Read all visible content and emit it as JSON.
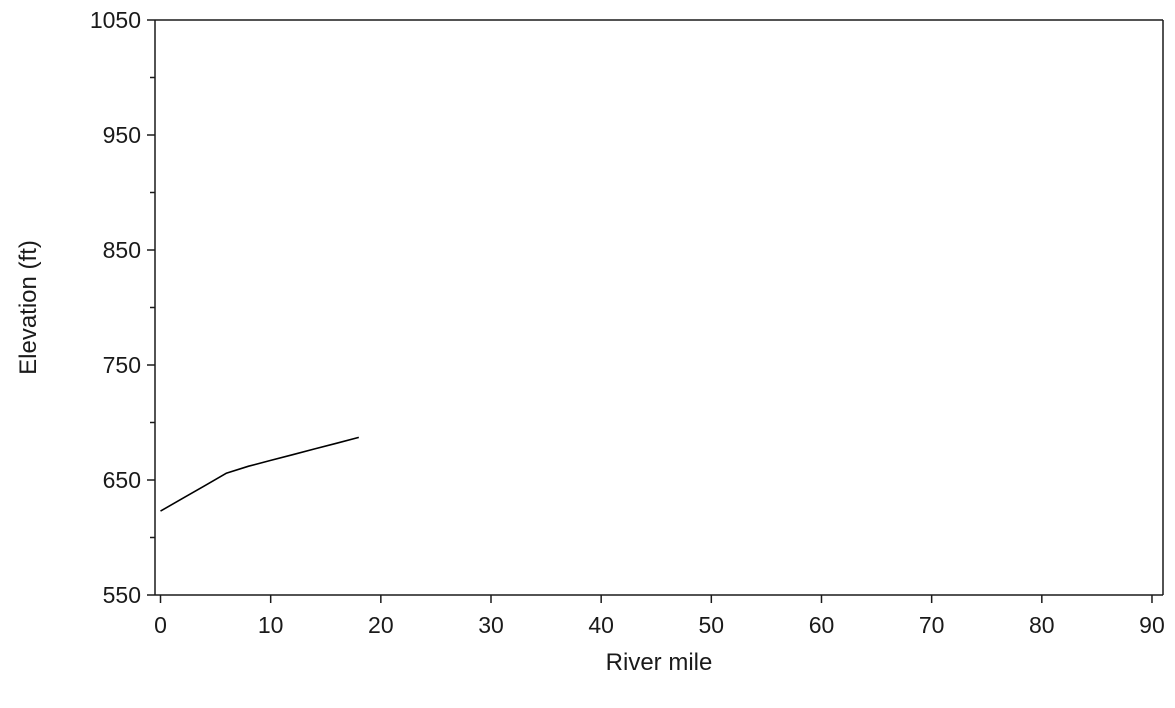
{
  "chart_data": {
    "type": "line",
    "title": "",
    "xlabel": "River mile",
    "ylabel": "Elevation (ft)",
    "xlim": [
      -0.5,
      91
    ],
    "ylim": [
      550,
      1050
    ],
    "x_ticks": [
      0,
      10,
      20,
      30,
      40,
      50,
      60,
      70,
      80,
      90
    ],
    "y_ticks_labeled": [
      550,
      650,
      750,
      850,
      950,
      1050
    ],
    "y_ticks_minor": [
      600,
      700,
      800,
      900,
      1000
    ],
    "grid": false,
    "legend": "none",
    "series": [
      {
        "color": "#000000",
        "x": [
          0,
          2,
          4,
          6,
          8,
          10,
          12,
          14,
          16,
          18
        ],
        "y": [
          623,
          634,
          645,
          656,
          662,
          667,
          672,
          677,
          682,
          687
        ]
      }
    ]
  }
}
